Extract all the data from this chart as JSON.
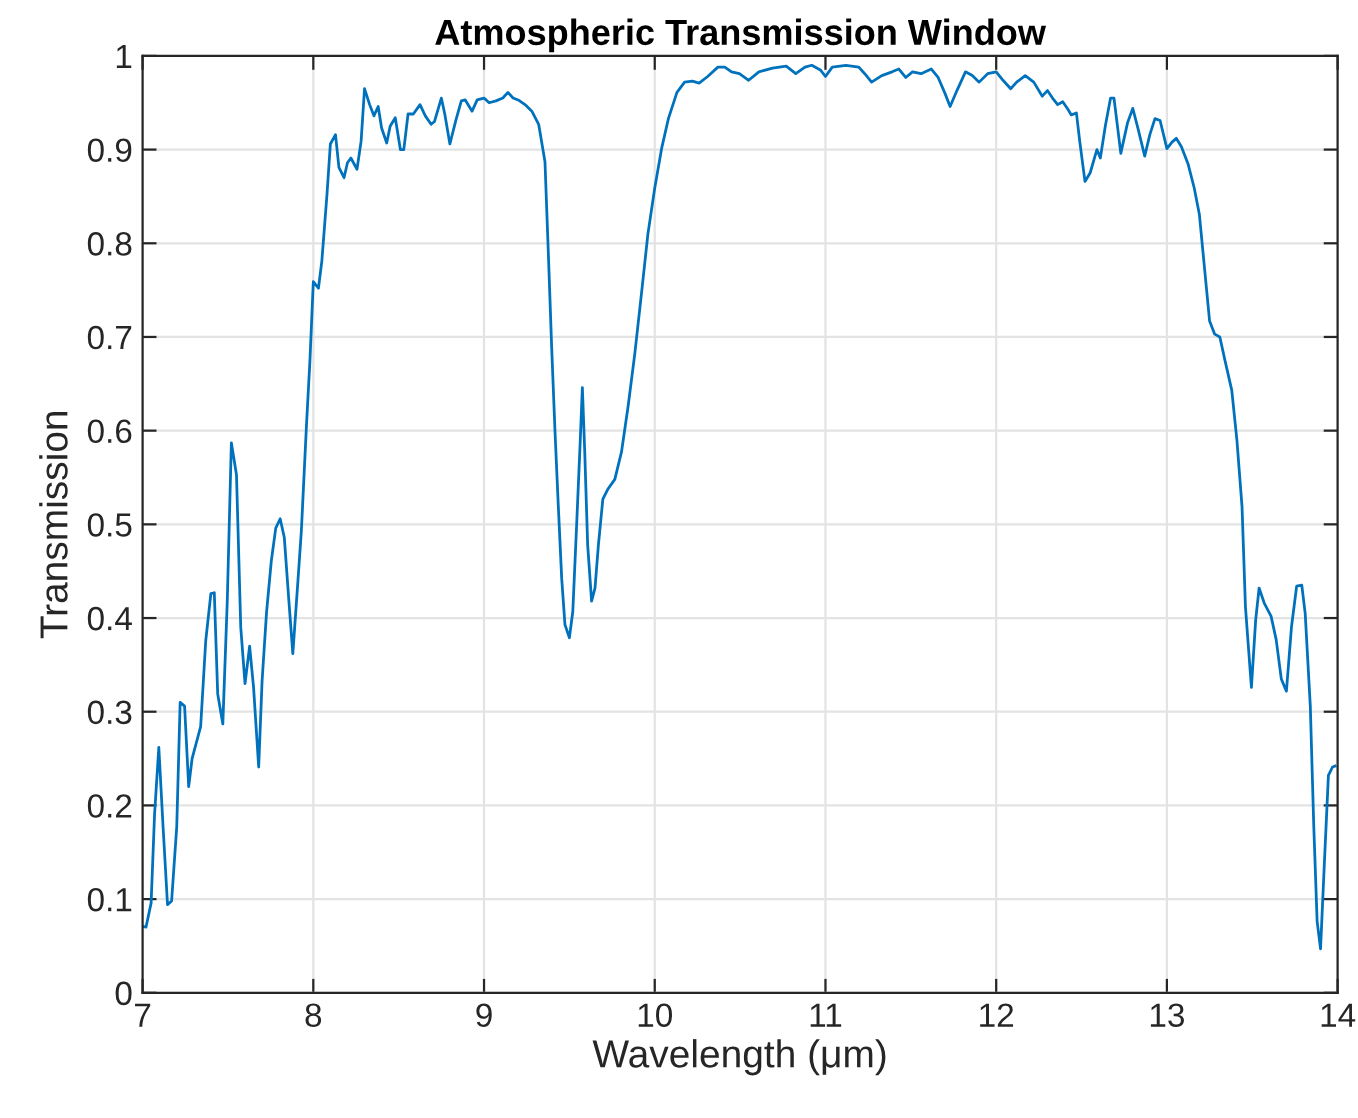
{
  "chart_data": {
    "type": "line",
    "title": "Atmospheric Transmission Window",
    "xlabel": "Wavelength (μm)",
    "ylabel": "Transmission",
    "xlim": [
      7,
      14
    ],
    "ylim": [
      0,
      1
    ],
    "xticks": [
      7,
      8,
      9,
      10,
      11,
      12,
      13,
      14
    ],
    "yticks": [
      0,
      0.1,
      0.2,
      0.3,
      0.4,
      0.5,
      0.6,
      0.7,
      0.8,
      0.9,
      1
    ],
    "grid": true,
    "marker": "none",
    "line_style": "solid",
    "series": [
      {
        "color": "#0072bd",
        "x": [
          7.0,
          7.02,
          7.05,
          7.07,
          7.095,
          7.12,
          7.146,
          7.17,
          7.2,
          7.22,
          7.246,
          7.27,
          7.29,
          7.34,
          7.37,
          7.4,
          7.42,
          7.44,
          7.47,
          7.496,
          7.52,
          7.55,
          7.575,
          7.6,
          7.627,
          7.65,
          7.68,
          7.7,
          7.726,
          7.754,
          7.78,
          7.806,
          7.83,
          7.857,
          7.88,
          7.91,
          7.93,
          7.96,
          7.98,
          8.0,
          8.03,
          8.05,
          8.08,
          8.1,
          8.13,
          8.15,
          8.18,
          8.2,
          8.22,
          8.256,
          8.28,
          8.3,
          8.33,
          8.355,
          8.38,
          8.4,
          8.43,
          8.45,
          8.48,
          8.51,
          8.53,
          8.555,
          8.586,
          8.625,
          8.656,
          8.69,
          8.71,
          8.75,
          8.77,
          8.8,
          8.836,
          8.867,
          8.89,
          8.93,
          8.96,
          9.0,
          9.03,
          9.07,
          9.11,
          9.14,
          9.17,
          9.2,
          9.24,
          9.28,
          9.32,
          9.357,
          9.377,
          9.396,
          9.416,
          9.435,
          9.455,
          9.474,
          9.5,
          9.52,
          9.544,
          9.564,
          9.576,
          9.59,
          9.607,
          9.63,
          9.65,
          9.67,
          9.696,
          9.727,
          9.766,
          9.805,
          9.844,
          9.883,
          9.922,
          9.96,
          10.0,
          10.04,
          10.08,
          10.13,
          10.175,
          10.22,
          10.26,
          10.31,
          10.37,
          10.41,
          10.45,
          10.496,
          10.55,
          10.61,
          10.69,
          10.77,
          10.826,
          10.88,
          10.92,
          10.97,
          11.0,
          11.04,
          11.12,
          11.195,
          11.23,
          11.27,
          11.33,
          11.39,
          11.43,
          11.47,
          11.51,
          11.56,
          11.62,
          11.66,
          11.7,
          11.73,
          11.77,
          11.82,
          11.86,
          11.9,
          11.95,
          12.0,
          12.04,
          12.085,
          12.12,
          12.17,
          12.22,
          12.27,
          12.3,
          12.33,
          12.36,
          12.39,
          12.42,
          12.44,
          12.47,
          12.49,
          12.52,
          12.55,
          12.59,
          12.61,
          12.64,
          12.67,
          12.69,
          12.73,
          12.77,
          12.8,
          12.83,
          12.87,
          12.9,
          12.93,
          12.96,
          13.0,
          13.03,
          13.055,
          13.085,
          13.125,
          13.16,
          13.19,
          13.22,
          13.25,
          13.28,
          13.31,
          13.34,
          13.38,
          13.41,
          13.44,
          13.46,
          13.495,
          13.52,
          13.54,
          13.57,
          13.61,
          13.64,
          13.67,
          13.7,
          13.73,
          13.76,
          13.79,
          13.81,
          13.84,
          13.86,
          13.88,
          13.9,
          13.92,
          13.946,
          13.97,
          13.985
        ],
        "values": [
          0.071,
          0.07,
          0.096,
          0.19,
          0.262,
          0.177,
          0.094,
          0.098,
          0.177,
          0.31,
          0.306,
          0.22,
          0.25,
          0.284,
          0.376,
          0.426,
          0.427,
          0.319,
          0.287,
          0.418,
          0.587,
          0.553,
          0.39,
          0.33,
          0.37,
          0.326,
          0.241,
          0.333,
          0.406,
          0.461,
          0.496,
          0.506,
          0.486,
          0.418,
          0.362,
          0.44,
          0.493,
          0.606,
          0.674,
          0.759,
          0.752,
          0.781,
          0.852,
          0.906,
          0.916,
          0.881,
          0.87,
          0.886,
          0.891,
          0.879,
          0.909,
          0.965,
          0.948,
          0.936,
          0.946,
          0.923,
          0.907,
          0.925,
          0.934,
          0.9,
          0.9,
          0.938,
          0.938,
          0.948,
          0.936,
          0.927,
          0.93,
          0.955,
          0.938,
          0.906,
          0.932,
          0.952,
          0.953,
          0.941,
          0.953,
          0.955,
          0.95,
          0.952,
          0.955,
          0.961,
          0.955,
          0.953,
          0.948,
          0.941,
          0.927,
          0.887,
          0.788,
          0.69,
          0.598,
          0.52,
          0.442,
          0.393,
          0.379,
          0.407,
          0.506,
          0.591,
          0.646,
          0.577,
          0.478,
          0.418,
          0.432,
          0.478,
          0.527,
          0.538,
          0.548,
          0.577,
          0.626,
          0.682,
          0.746,
          0.81,
          0.859,
          0.901,
          0.933,
          0.961,
          0.972,
          0.973,
          0.971,
          0.978,
          0.988,
          0.988,
          0.983,
          0.981,
          0.974,
          0.983,
          0.987,
          0.989,
          0.981,
          0.988,
          0.99,
          0.985,
          0.978,
          0.988,
          0.99,
          0.988,
          0.981,
          0.972,
          0.979,
          0.983,
          0.986,
          0.977,
          0.983,
          0.981,
          0.986,
          0.977,
          0.96,
          0.946,
          0.963,
          0.983,
          0.979,
          0.972,
          0.981,
          0.983,
          0.974,
          0.965,
          0.972,
          0.979,
          0.972,
          0.957,
          0.963,
          0.955,
          0.948,
          0.951,
          0.943,
          0.937,
          0.939,
          0.908,
          0.866,
          0.875,
          0.9,
          0.891,
          0.926,
          0.955,
          0.955,
          0.896,
          0.929,
          0.944,
          0.923,
          0.893,
          0.916,
          0.933,
          0.931,
          0.901,
          0.908,
          0.912,
          0.903,
          0.884,
          0.859,
          0.831,
          0.774,
          0.717,
          0.703,
          0.7,
          0.675,
          0.643,
          0.59,
          0.519,
          0.412,
          0.326,
          0.398,
          0.432,
          0.416,
          0.402,
          0.377,
          0.335,
          0.322,
          0.391,
          0.434,
          0.435,
          0.405,
          0.306,
          0.179,
          0.076,
          0.047,
          0.129,
          0.232,
          0.241,
          0.242
        ]
      }
    ]
  }
}
